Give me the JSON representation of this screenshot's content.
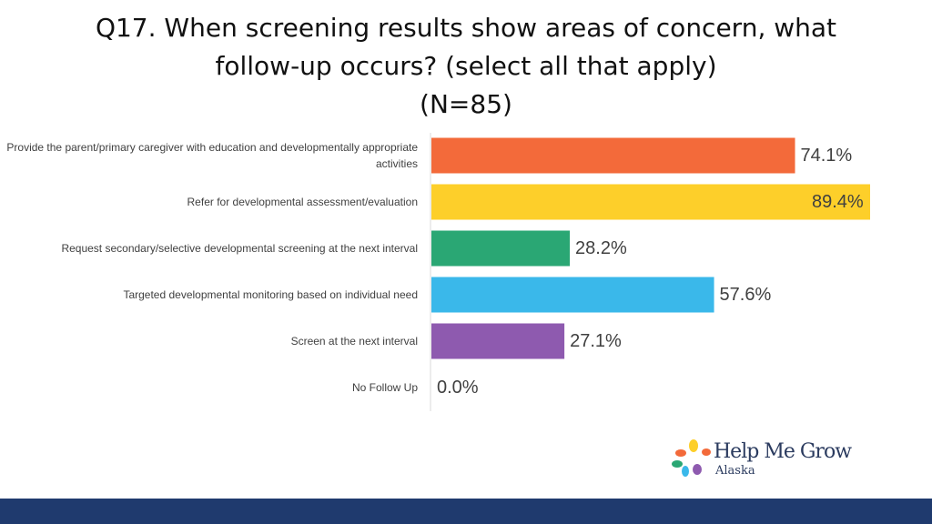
{
  "title": {
    "line1": "Q17. When screening results show areas of concern, what",
    "line2": "follow-up occurs? (select all that apply)",
    "line3": "(N=85)"
  },
  "chart_data": {
    "type": "bar",
    "orientation": "horizontal",
    "categories": [
      "Provide the parent/primary caregiver with education and developmentally appropriate activities",
      "Refer for developmental assessment/evaluation",
      "Request secondary/selective developmental screening at the next interval",
      "Targeted developmental monitoring based on individual need",
      "Screen at the next interval",
      "No Follow Up"
    ],
    "values": [
      74.1,
      89.4,
      28.2,
      57.6,
      27.1,
      0.0
    ],
    "value_labels": [
      "74.1%",
      "89.4%",
      "28.2%",
      "57.6%",
      "27.1%",
      "0.0%"
    ],
    "colors": [
      "#f36a3a",
      "#fdcf2a",
      "#2aa774",
      "#3ab8ea",
      "#8e5aaf",
      "#cccccc"
    ],
    "xlim": [
      0,
      89.4
    ]
  },
  "logo": {
    "name": "Help Me Grow",
    "sub": "Alaska",
    "petal_colors": [
      "#f36a3a",
      "#fdcf2a",
      "#2aa774",
      "#3ab8ea",
      "#8e5aaf"
    ]
  },
  "footer": {
    "color": "#1f3a6e"
  }
}
